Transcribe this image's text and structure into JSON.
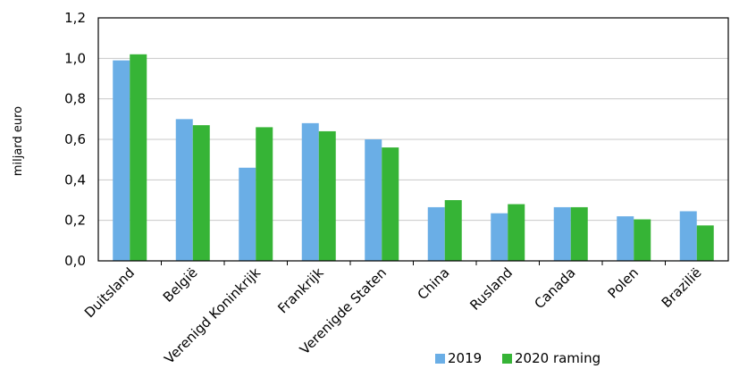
{
  "chart_data": {
    "type": "bar",
    "title": "",
    "xlabel": "",
    "ylabel": "miljard euro",
    "ylim": [
      0,
      1.2
    ],
    "yticks": [
      "0,0",
      "0,2",
      "0,4",
      "0,6",
      "0,8",
      "1,0",
      "1,2"
    ],
    "ytick_values": [
      0,
      0.2,
      0.4,
      0.6,
      0.8,
      1.0,
      1.2
    ],
    "grid": true,
    "legend_position": "bottom-right",
    "categories": [
      "Duitsland",
      "België",
      "Verenigd Koninkrijk",
      "Frankrijk",
      "Verenigde Staten",
      "China",
      "Rusland",
      "Canada",
      "Polen",
      "Brazilië"
    ],
    "series": [
      {
        "name": "2019",
        "color": "#6aaee6",
        "values": [
          0.99,
          0.7,
          0.46,
          0.68,
          0.6,
          0.265,
          0.235,
          0.265,
          0.22,
          0.245
        ]
      },
      {
        "name": "2020 raming",
        "color": "#36b436",
        "values": [
          1.02,
          0.67,
          0.66,
          0.64,
          0.56,
          0.3,
          0.28,
          0.265,
          0.205,
          0.175
        ]
      }
    ]
  }
}
